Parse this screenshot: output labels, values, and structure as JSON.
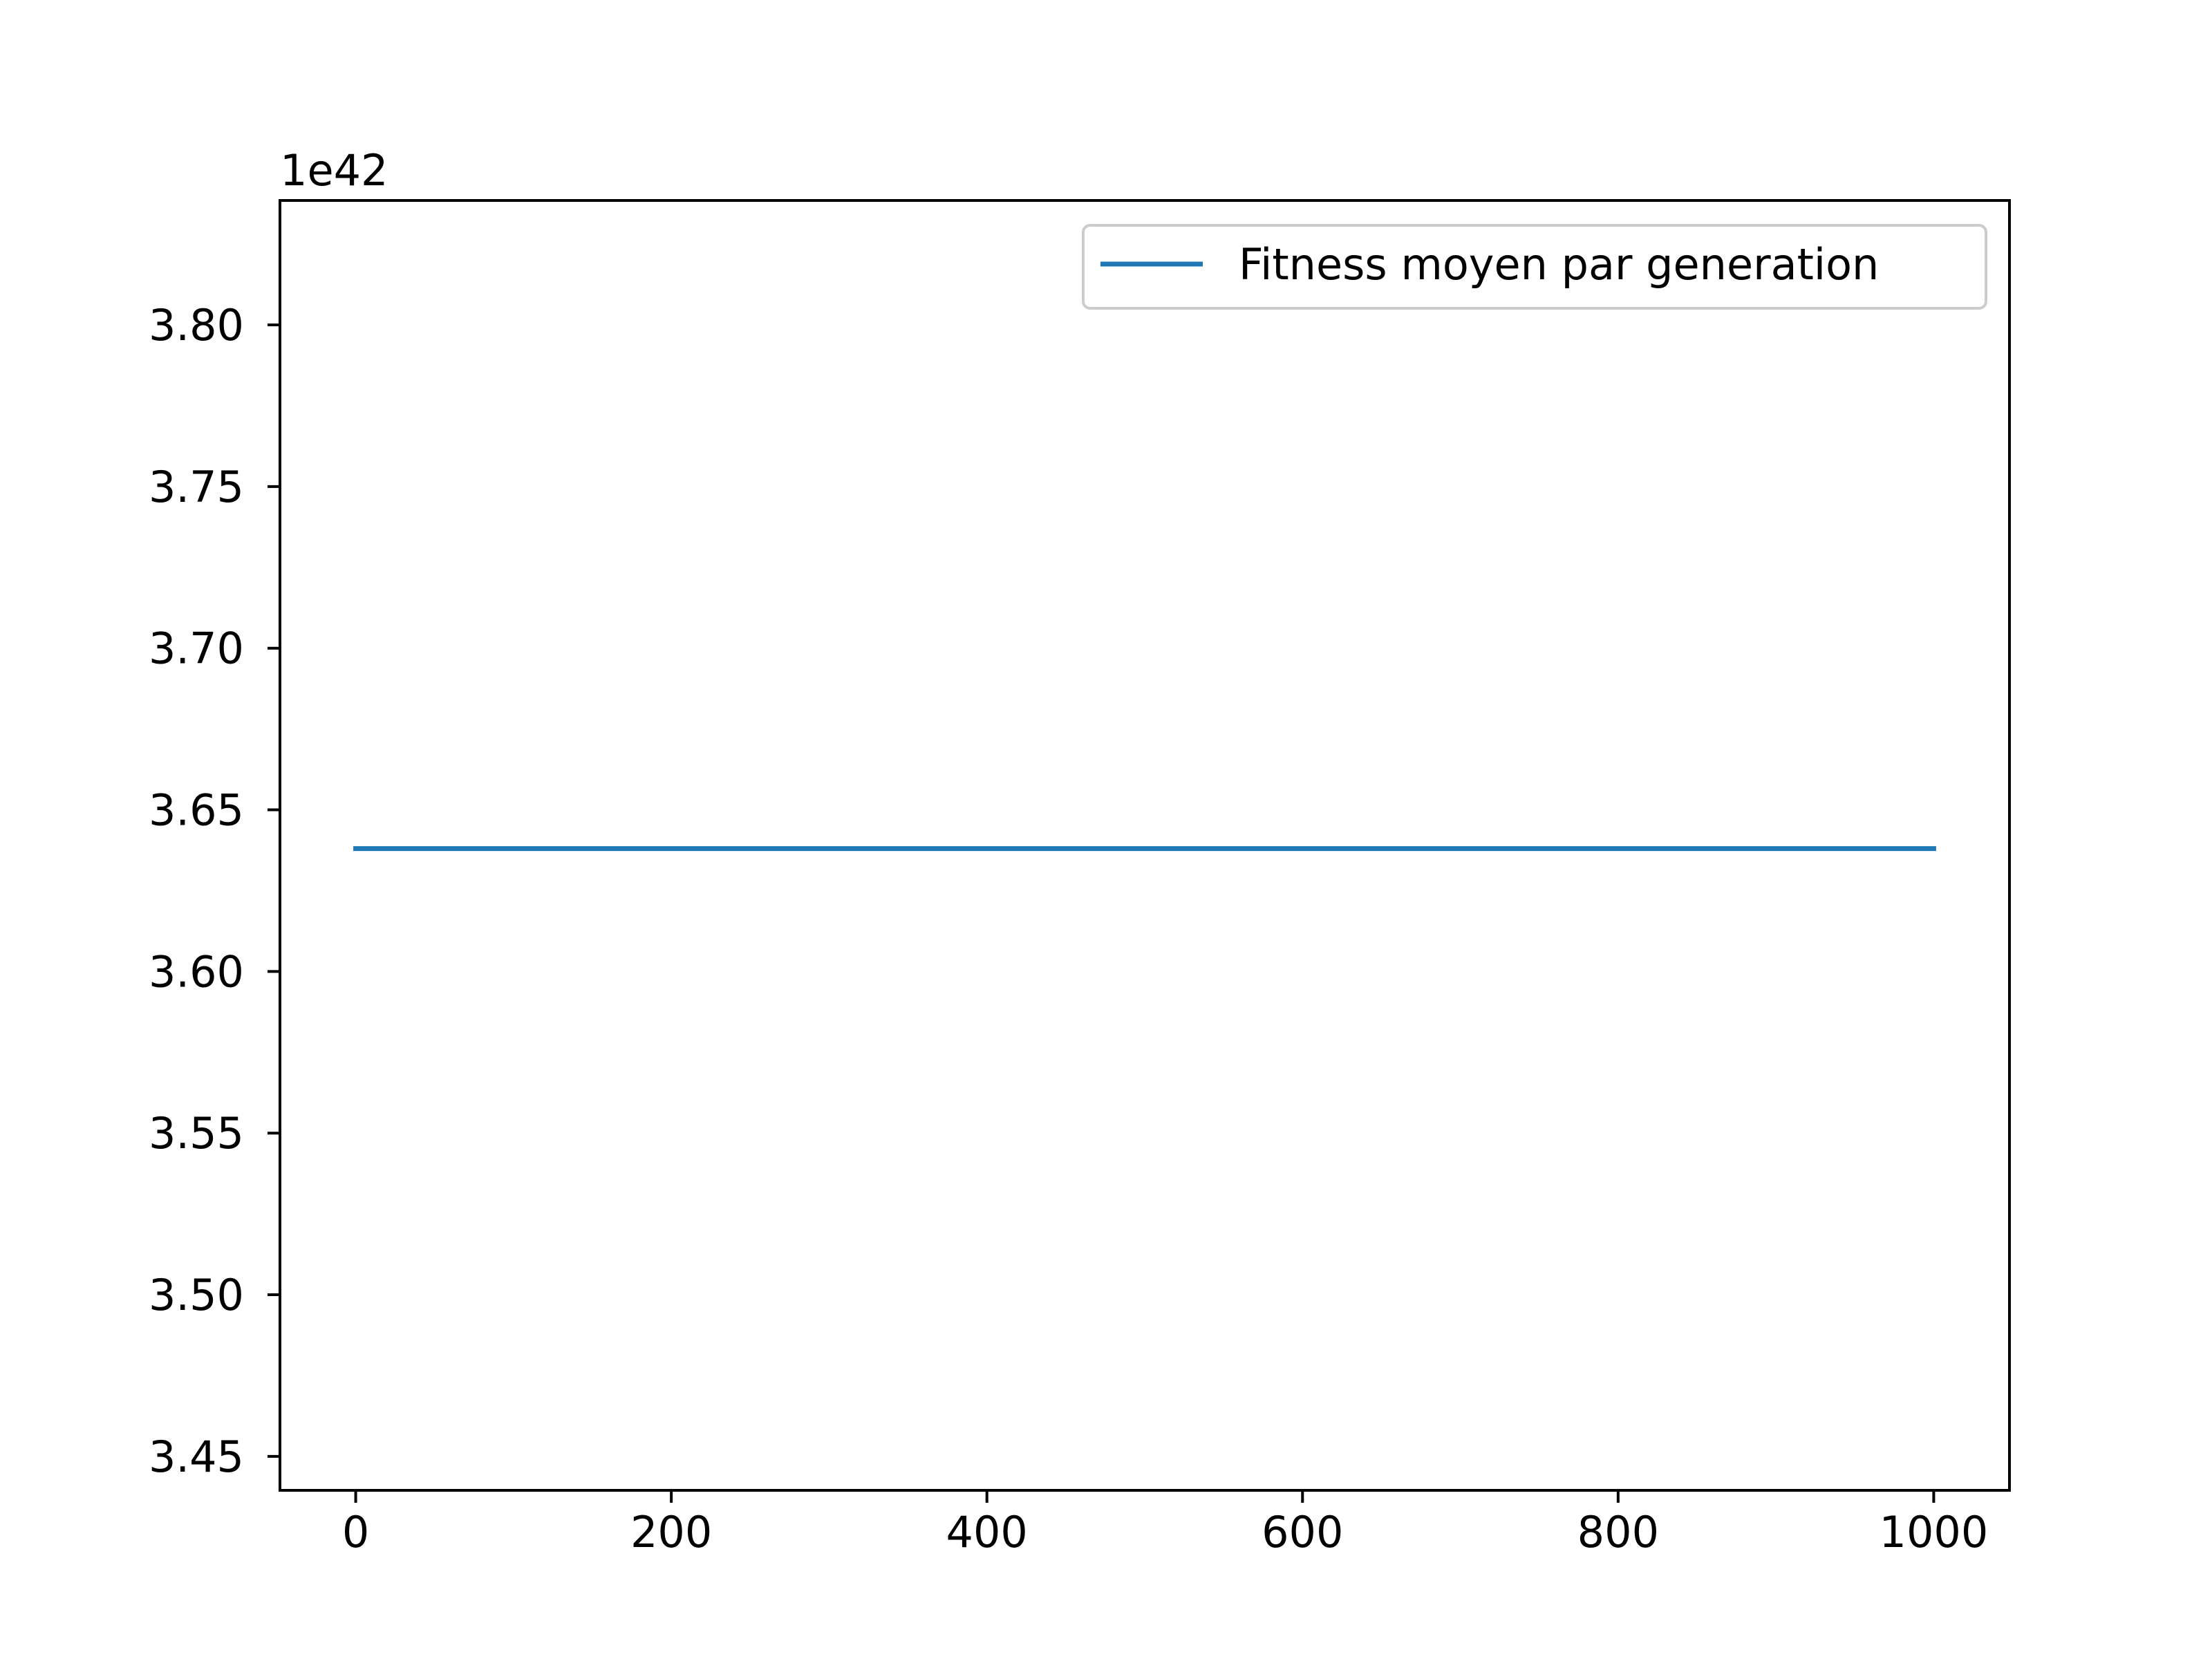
{
  "chart_data": {
    "type": "line",
    "title": "",
    "xlabel": "",
    "ylabel": "",
    "y_offset_label": "1e42",
    "xlim": [
      -48,
      1048
    ],
    "ylim": [
      3.4395,
      3.8385
    ],
    "x_ticks": [
      0,
      200,
      400,
      600,
      800,
      1000
    ],
    "x_tick_labels": [
      "0",
      "200",
      "400",
      "600",
      "800",
      "1000"
    ],
    "y_ticks": [
      3.45,
      3.5,
      3.55,
      3.6,
      3.65,
      3.7,
      3.75,
      3.8
    ],
    "y_tick_labels": [
      "3.45",
      "3.50",
      "3.55",
      "3.60",
      "3.65",
      "3.70",
      "3.75",
      "3.80"
    ],
    "grid": false,
    "legend_position": "top-right",
    "series": [
      {
        "name": "Fitness moyen par generation",
        "color": "#1f77b4",
        "x": [
          0,
          1000
        ],
        "y": [
          3.638,
          3.638
        ]
      }
    ]
  }
}
